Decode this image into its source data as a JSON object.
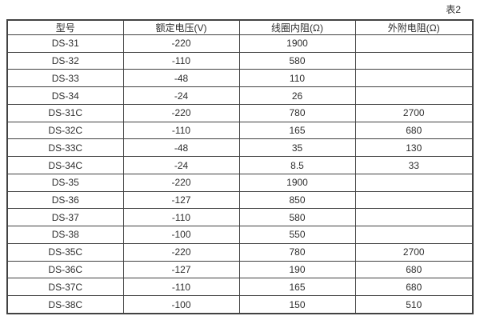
{
  "caption": "表2",
  "table": {
    "columns": [
      "型号",
      "额定电压(V)",
      "线圈内阻(Ω)",
      "外附电阻(Ω)"
    ],
    "rows": [
      [
        "DS-31",
        "-220",
        "1900",
        ""
      ],
      [
        "DS-32",
        "-110",
        "580",
        ""
      ],
      [
        "DS-33",
        "-48",
        "110",
        ""
      ],
      [
        "DS-34",
        "-24",
        "26",
        ""
      ],
      [
        "DS-31C",
        "-220",
        "780",
        "2700"
      ],
      [
        "DS-32C",
        "-110",
        "165",
        "680"
      ],
      [
        "DS-33C",
        "-48",
        "35",
        "130"
      ],
      [
        "DS-34C",
        "-24",
        "8.5",
        "33"
      ],
      [
        "DS-35",
        "-220",
        "1900",
        ""
      ],
      [
        "DS-36",
        "-127",
        "850",
        ""
      ],
      [
        "DS-37",
        "-110",
        "580",
        ""
      ],
      [
        "DS-38",
        "-100",
        "550",
        ""
      ],
      [
        "DS-35C",
        "-220",
        "780",
        "2700"
      ],
      [
        "DS-36C",
        "-127",
        "190",
        "680"
      ],
      [
        "DS-37C",
        "-110",
        "165",
        "680"
      ],
      [
        "DS-38C",
        "-100",
        "150",
        "510"
      ]
    ]
  },
  "colors": {
    "border": "#424242",
    "text": "#2e2e2e",
    "background": "#ffffff"
  }
}
